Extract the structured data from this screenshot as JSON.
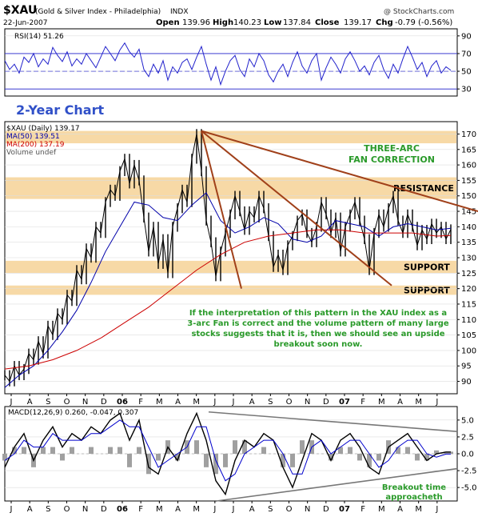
{
  "header": {
    "symbol": "$XAU",
    "name": "(Gold & Silver Index - Philadelphia)",
    "exchange": "INDX",
    "date": "22-Jun-2007",
    "open_label": "Open",
    "open": "139.96",
    "high_label": "High",
    "high": "140.23",
    "low_label": "Low",
    "low": "137.84",
    "close_label": "Close",
    "close": "139.17",
    "chg_label": "Chg",
    "chg": "-0.79 (-0.56%)",
    "watermark": "@ StockCharts.com"
  },
  "chart_data": [
    {
      "type": "line",
      "panel": "rsi",
      "legend": "RSI(14) 51.26",
      "y_ticks": [
        30,
        50,
        70,
        90
      ],
      "ylim": [
        22,
        98
      ],
      "levels": [
        30,
        70
      ],
      "series": [
        {
          "name": "RSI(14)",
          "color": "#2222cc",
          "x": [
            0,
            6,
            12,
            18,
            24,
            30,
            36,
            42,
            48,
            54,
            60,
            66,
            72,
            78,
            84,
            90,
            96,
            102,
            108,
            114,
            120,
            126,
            132,
            138,
            144,
            150,
            156,
            162,
            168,
            174,
            180,
            186,
            192,
            198,
            204,
            210,
            216,
            222,
            228,
            234,
            240,
            246,
            252,
            258,
            264,
            270,
            276,
            282,
            288,
            294,
            300,
            306,
            312,
            318,
            324,
            330,
            336,
            342,
            348,
            354,
            360,
            366,
            372,
            378,
            384,
            390,
            396,
            402,
            408,
            414,
            420,
            426,
            432,
            438,
            444,
            450,
            456,
            462,
            468,
            474,
            480,
            486,
            492,
            498,
            504,
            510,
            516,
            522,
            528,
            534,
            540,
            546,
            552,
            558
          ],
          "values": [
            62,
            52,
            58,
            48,
            66,
            60,
            70,
            55,
            64,
            58,
            77,
            68,
            61,
            72,
            56,
            64,
            58,
            70,
            62,
            54,
            66,
            78,
            70,
            62,
            74,
            82,
            72,
            66,
            75,
            52,
            44,
            58,
            48,
            62,
            40,
            55,
            48,
            60,
            64,
            52,
            66,
            78,
            58,
            40,
            55,
            35,
            50,
            62,
            68,
            52,
            44,
            64,
            55,
            70,
            62,
            46,
            38,
            50,
            58,
            44,
            60,
            72,
            56,
            48,
            62,
            70,
            40,
            54,
            66,
            58,
            48,
            64,
            72,
            62,
            50,
            56,
            46,
            60,
            68,
            52,
            42,
            58,
            48,
            64,
            78,
            66,
            52,
            60,
            44,
            56,
            62,
            48,
            55,
            51
          ]
        }
      ]
    },
    {
      "type": "line",
      "panel": "price",
      "annotation_title": "2-Year Chart",
      "legend": [
        {
          "label": "$XAU (Daily) 139.17",
          "color": "#000000"
        },
        {
          "label": "MA(50) 139.51",
          "color": "#0000aa"
        },
        {
          "label": "MA(200) 137.19",
          "color": "#cc0000"
        },
        {
          "label": "Volume undef",
          "color": "#555555"
        }
      ],
      "y_ticks": [
        90,
        95,
        100,
        105,
        110,
        115,
        120,
        125,
        130,
        135,
        140,
        145,
        150,
        155,
        160,
        165,
        170
      ],
      "ylim": [
        86,
        174
      ],
      "x_tick_labels": [
        "J",
        "A",
        "S",
        "O",
        "N",
        "D",
        "06",
        "F",
        "M",
        "A",
        "M",
        "J",
        "J",
        "A",
        "S",
        "O",
        "N",
        "D",
        "07",
        "F",
        "M",
        "A",
        "M",
        "J"
      ],
      "zones": [
        {
          "label": "",
          "low": 167,
          "high": 171
        },
        {
          "label": "RESISTANCE",
          "low": 149,
          "high": 156
        },
        {
          "label": "SUPPORT",
          "low": 125,
          "high": 129
        },
        {
          "label": "SUPPORT",
          "low": 118,
          "high": 121
        }
      ],
      "series": [
        {
          "name": "$XAU",
          "color": "#000000",
          "x": [
            0,
            6,
            12,
            18,
            24,
            30,
            36,
            42,
            48,
            54,
            60,
            66,
            72,
            78,
            84,
            90,
            96,
            102,
            108,
            114,
            120,
            126,
            132,
            138,
            144,
            150,
            156,
            162,
            168,
            174,
            180,
            186,
            192,
            198,
            204,
            210,
            216,
            222,
            228,
            234,
            240,
            246,
            252,
            258,
            264,
            270,
            276,
            282,
            288,
            294,
            300,
            306,
            312,
            318,
            324,
            330,
            336,
            342,
            348,
            354,
            360,
            366,
            372,
            378,
            384,
            390,
            396,
            402,
            408,
            414,
            420,
            426,
            432,
            438,
            444,
            450,
            456,
            462,
            468,
            474,
            480,
            486,
            492,
            498,
            504,
            510,
            516,
            522,
            528,
            534,
            540,
            546,
            552,
            558
          ],
          "values": [
            92,
            90,
            95,
            92,
            94,
            99,
            97,
            103,
            99,
            108,
            105,
            112,
            110,
            118,
            116,
            126,
            123,
            133,
            130,
            140,
            138,
            148,
            152,
            150,
            158,
            162,
            154,
            160,
            155,
            143,
            132,
            140,
            128,
            136,
            125,
            140,
            146,
            152,
            148,
            162,
            170,
            158,
            142,
            135,
            124,
            132,
            138,
            144,
            150,
            145,
            139,
            145,
            143,
            150,
            146,
            137,
            127,
            131,
            126,
            134,
            137,
            142,
            144,
            138,
            135,
            140,
            148,
            144,
            138,
            143,
            132,
            140,
            144,
            148,
            142,
            136,
            126,
            138,
            144,
            140,
            146,
            150,
            142,
            138,
            144,
            140,
            134,
            139,
            136,
            141,
            138,
            140,
            136,
            139.17
          ]
        },
        {
          "name": "MA(50)",
          "color": "#0000aa",
          "x": [
            0,
            18,
            36,
            54,
            72,
            90,
            108,
            126,
            144,
            162,
            180,
            198,
            216,
            234,
            252,
            270,
            288,
            306,
            324,
            342,
            360,
            378,
            396,
            414,
            432,
            450,
            468,
            486,
            504,
            522,
            540,
            558
          ],
          "values": [
            88,
            92,
            95,
            100,
            106,
            113,
            122,
            132,
            140,
            148,
            147,
            143,
            142,
            147,
            151,
            142,
            138,
            140,
            143,
            141,
            136,
            135,
            137,
            142,
            141,
            140,
            137,
            140,
            141,
            140,
            139,
            139.51
          ]
        },
        {
          "name": "MA(200)",
          "color": "#cc0000",
          "x": [
            0,
            30,
            60,
            90,
            120,
            150,
            180,
            210,
            240,
            270,
            300,
            330,
            360,
            390,
            420,
            450,
            480,
            510,
            540,
            558
          ],
          "values": [
            94,
            95,
            97,
            100,
            104,
            109,
            114,
            120,
            126,
            131,
            135,
            137,
            138,
            139,
            139,
            138,
            138,
            138,
            137,
            137.19
          ]
        }
      ],
      "trendlines": [
        {
          "from": [
            246,
            171
          ],
          "to": [
            296,
            120
          ]
        },
        {
          "from": [
            246,
            171
          ],
          "to": [
            484,
            121
          ]
        },
        {
          "from": [
            246,
            171
          ],
          "to": [
            598,
            145
          ]
        }
      ],
      "labels": {
        "fan": "THREE-ARC\nFAN CORRECTION",
        "comment": "If the interpretation of this pattern in the XAU index as a\n3-arc Fan is correct and the volume pattern of many large\nstocks suggests that it is, then we should see an upside\nbreakout soon now."
      }
    },
    {
      "type": "line",
      "panel": "macd",
      "legend": "MACD(12,26,9) 0.260, -0.047, 0.307",
      "y_ticks": [
        5.0,
        2.5,
        0.0,
        -2.5,
        -5.0
      ],
      "ylim": [
        -7,
        7
      ],
      "x_tick_labels": [
        "J",
        "A",
        "S",
        "O",
        "N",
        "D",
        "06",
        "F",
        "M",
        "A",
        "M",
        "J",
        "J",
        "A",
        "S",
        "O",
        "N",
        "D",
        "07",
        "F",
        "M",
        "A",
        "M",
        "J"
      ],
      "note": "Breakout time\napproacheth",
      "series": [
        {
          "name": "MACD",
          "color": "#000000",
          "x": [
            0,
            12,
            24,
            36,
            48,
            60,
            72,
            84,
            96,
            108,
            120,
            132,
            144,
            156,
            168,
            180,
            192,
            204,
            216,
            228,
            240,
            252,
            264,
            276,
            288,
            300,
            312,
            324,
            336,
            348,
            360,
            372,
            384,
            396,
            408,
            420,
            432,
            444,
            456,
            468,
            480,
            492,
            504,
            516,
            528,
            540,
            552,
            558
          ],
          "values": [
            -2,
            1,
            3,
            -1,
            2,
            4,
            1,
            3,
            2,
            4,
            3,
            5,
            6,
            2,
            5,
            -2,
            -3,
            1,
            -1,
            3,
            6,
            2,
            -4,
            -6,
            -1,
            2,
            1,
            3,
            2,
            -2,
            -5,
            -1,
            3,
            2,
            -1,
            2,
            3,
            1,
            -2,
            -3,
            1,
            2,
            3,
            1,
            -1,
            0,
            0.26,
            0.26
          ]
        },
        {
          "name": "Signal",
          "color": "#0000cc",
          "x": [
            0,
            12,
            24,
            36,
            48,
            60,
            72,
            84,
            96,
            108,
            120,
            132,
            144,
            156,
            168,
            180,
            192,
            204,
            216,
            228,
            240,
            252,
            264,
            276,
            288,
            300,
            312,
            324,
            336,
            348,
            360,
            372,
            384,
            396,
            408,
            420,
            432,
            444,
            456,
            468,
            480,
            492,
            504,
            516,
            528,
            540,
            552,
            558
          ],
          "values": [
            -1,
            0,
            2,
            1,
            1,
            3,
            2,
            2,
            2,
            3,
            3,
            4,
            5,
            4,
            4,
            1,
            -2,
            -1,
            0,
            1,
            4,
            4,
            -1,
            -4,
            -3,
            0,
            1,
            2,
            2,
            0,
            -3,
            -3,
            1,
            2,
            0,
            1,
            2,
            2,
            0,
            -2,
            -1,
            1,
            2,
            2,
            0,
            -0.5,
            -0.047,
            -0.047
          ]
        }
      ],
      "trendlines": [
        {
          "from": [
            255,
            6.2
          ],
          "to": [
            566,
            3.3
          ]
        },
        {
          "from": [
            265,
            -7
          ],
          "to": [
            566,
            -2.2
          ]
        }
      ]
    }
  ]
}
